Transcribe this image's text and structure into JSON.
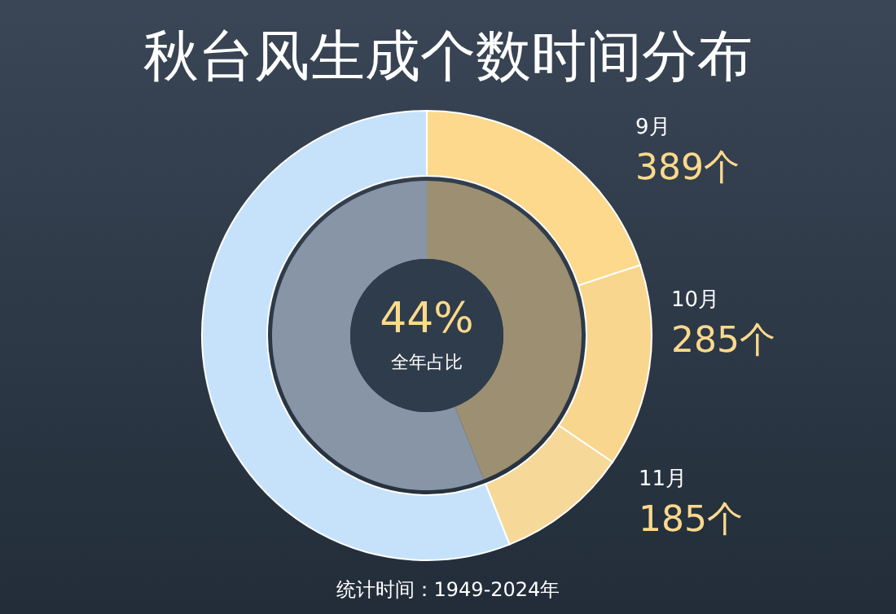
{
  "chart_data": [
    {
      "type": "donut",
      "title": "秋台风生成个数时间分布",
      "categories": [
        "9月",
        "10月",
        "11月",
        null
      ],
      "values": [
        389,
        285,
        185,
        1093
      ],
      "colors": [
        "#fcd98c",
        "#f9d68e",
        "#f6d898",
        "#c6e2fa"
      ],
      "value_labels": [
        "389个",
        "285个",
        "185个",
        null
      ],
      "annotations": [
        "统计时间：1949-2024年"
      ]
    },
    {
      "type": "donut",
      "categories": [
        null,
        null
      ],
      "values": [
        44,
        56
      ],
      "colors": [
        "#9c8f72",
        "#8795a6"
      ],
      "value_labels": [
        "44%",
        null
      ],
      "annotations": [
        "全年占比"
      ]
    }
  ]
}
